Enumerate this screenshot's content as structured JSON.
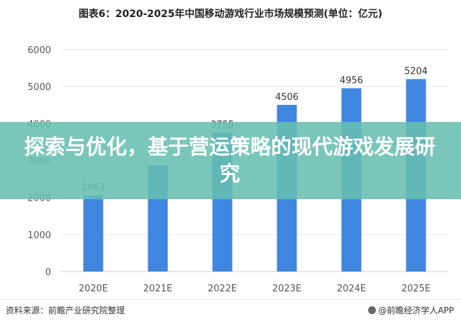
{
  "title": "图表6：2020-2025年中国移动游戏行业市场规模预测(单位：亿元)",
  "banner": {
    "text": "探索与优化，基于营运策略的现代游戏发展研究"
  },
  "source": "资料来源：前瞻产业研究院整理",
  "brand": "@前瞻经济学人APP",
  "colors": {
    "bar": "#3F86E0",
    "banner": "#68BEB0"
  },
  "chart_data": {
    "type": "bar",
    "title": "图表6：2020-2025年中国移动游戏行业市场规模预测(单位：亿元)",
    "categories": [
      "2020E",
      "2021E",
      "2022E",
      "2023E",
      "2024E",
      "2025E"
    ],
    "values": [
      2063,
      2870,
      3755,
      4506,
      4956,
      5204
    ],
    "value_labels": [
      "2063",
      "",
      "3755",
      "4506",
      "4956",
      "5204"
    ],
    "ylim": [
      0,
      6000
    ],
    "yticks": [
      0,
      1000,
      2000,
      3000,
      4000,
      5000,
      6000
    ],
    "grid": true,
    "xlabel": "",
    "ylabel": ""
  }
}
